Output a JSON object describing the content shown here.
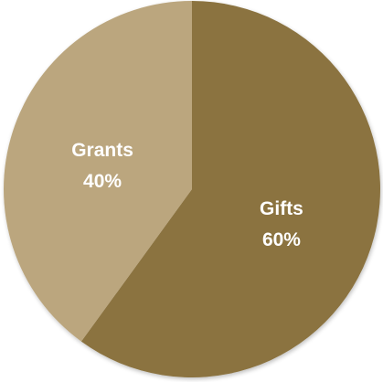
{
  "chart_data": {
    "type": "pie",
    "slices": [
      {
        "label": "Gifts",
        "value": 60,
        "percent_label": "60%",
        "color": "#8b7340"
      },
      {
        "label": "Grants",
        "value": 40,
        "percent_label": "40%",
        "color": "#bba67e"
      }
    ],
    "start_angle_deg": 0,
    "direction": "clockwise"
  }
}
